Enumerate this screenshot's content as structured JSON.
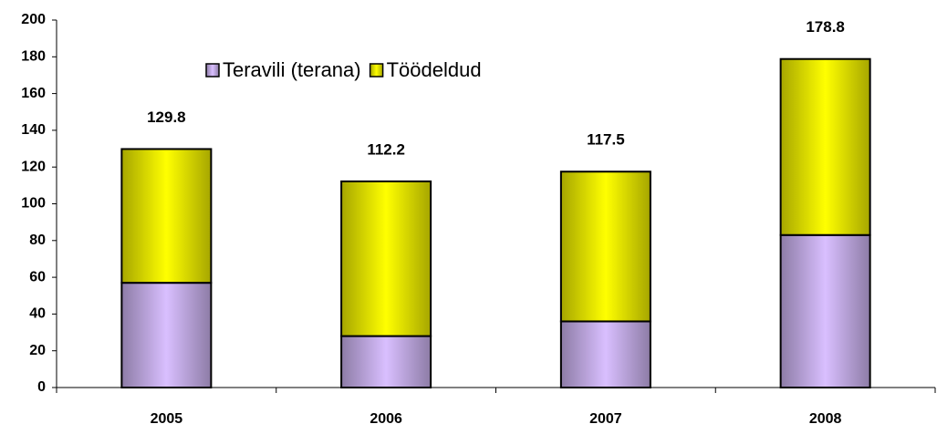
{
  "chart_data": {
    "type": "stacked_bar",
    "categories": [
      "2005",
      "2006",
      "2007",
      "2008"
    ],
    "series": [
      {
        "name": "Teravili (terana)",
        "color": "#d9bfff",
        "values": [
          57,
          28,
          36,
          83
        ]
      },
      {
        "name": "Töödeldud",
        "color": "#ffff00",
        "values": [
          72.8,
          84.2,
          81.5,
          95.8
        ]
      }
    ],
    "totals": [
      129.8,
      112.2,
      117.5,
      178.8
    ],
    "ylim": [
      0,
      200
    ],
    "yticks": [
      0,
      20,
      40,
      60,
      80,
      100,
      120,
      140,
      160,
      180,
      200
    ],
    "grid": false,
    "legend": "top"
  }
}
